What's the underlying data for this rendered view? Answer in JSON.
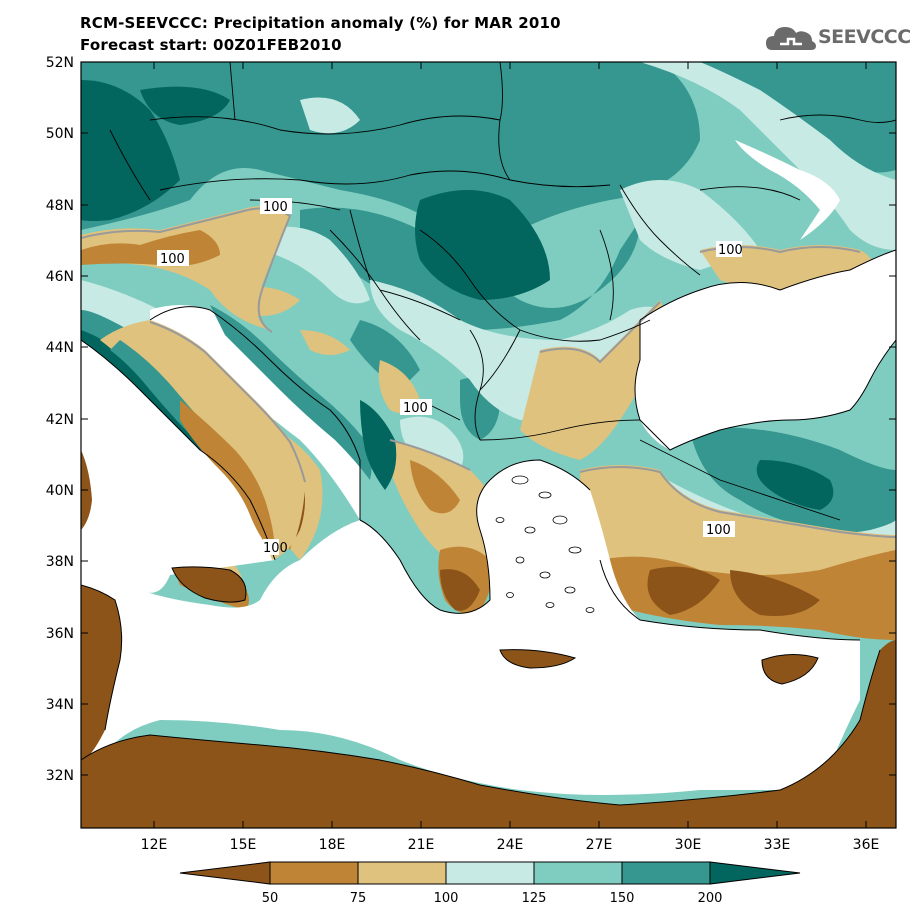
{
  "header": {
    "title": "RCM-SEEVCCC: Precipitation anomaly (%) for MAR 2010",
    "subtitle": "Forecast start: 00Z01FEB2010"
  },
  "logo": {
    "text": "SEEVCCC",
    "icon": "cloud-icon",
    "color": "#6b6b6b"
  },
  "map": {
    "lon_range": [
      9,
      37
    ],
    "lat_range": [
      30.5,
      52
    ],
    "lat_ticks": [
      "52N",
      "50N",
      "48N",
      "46N",
      "44N",
      "42N",
      "40N",
      "38N",
      "36N",
      "34N",
      "32N"
    ],
    "lon_ticks": [
      "12E",
      "15E",
      "18E",
      "21E",
      "24E",
      "27E",
      "30E",
      "33E",
      "36E"
    ],
    "contour_labels": [
      "100",
      "100",
      "100",
      "100",
      "100",
      "100"
    ]
  },
  "colorbar": {
    "levels": [
      "50",
      "75",
      "100",
      "125",
      "150",
      "200"
    ],
    "colors": [
      "#8c5419",
      "#bf8435",
      "#dfc27d",
      "#c7eae4",
      "#7fcdc0",
      "#35978f",
      "#02665e"
    ]
  }
}
